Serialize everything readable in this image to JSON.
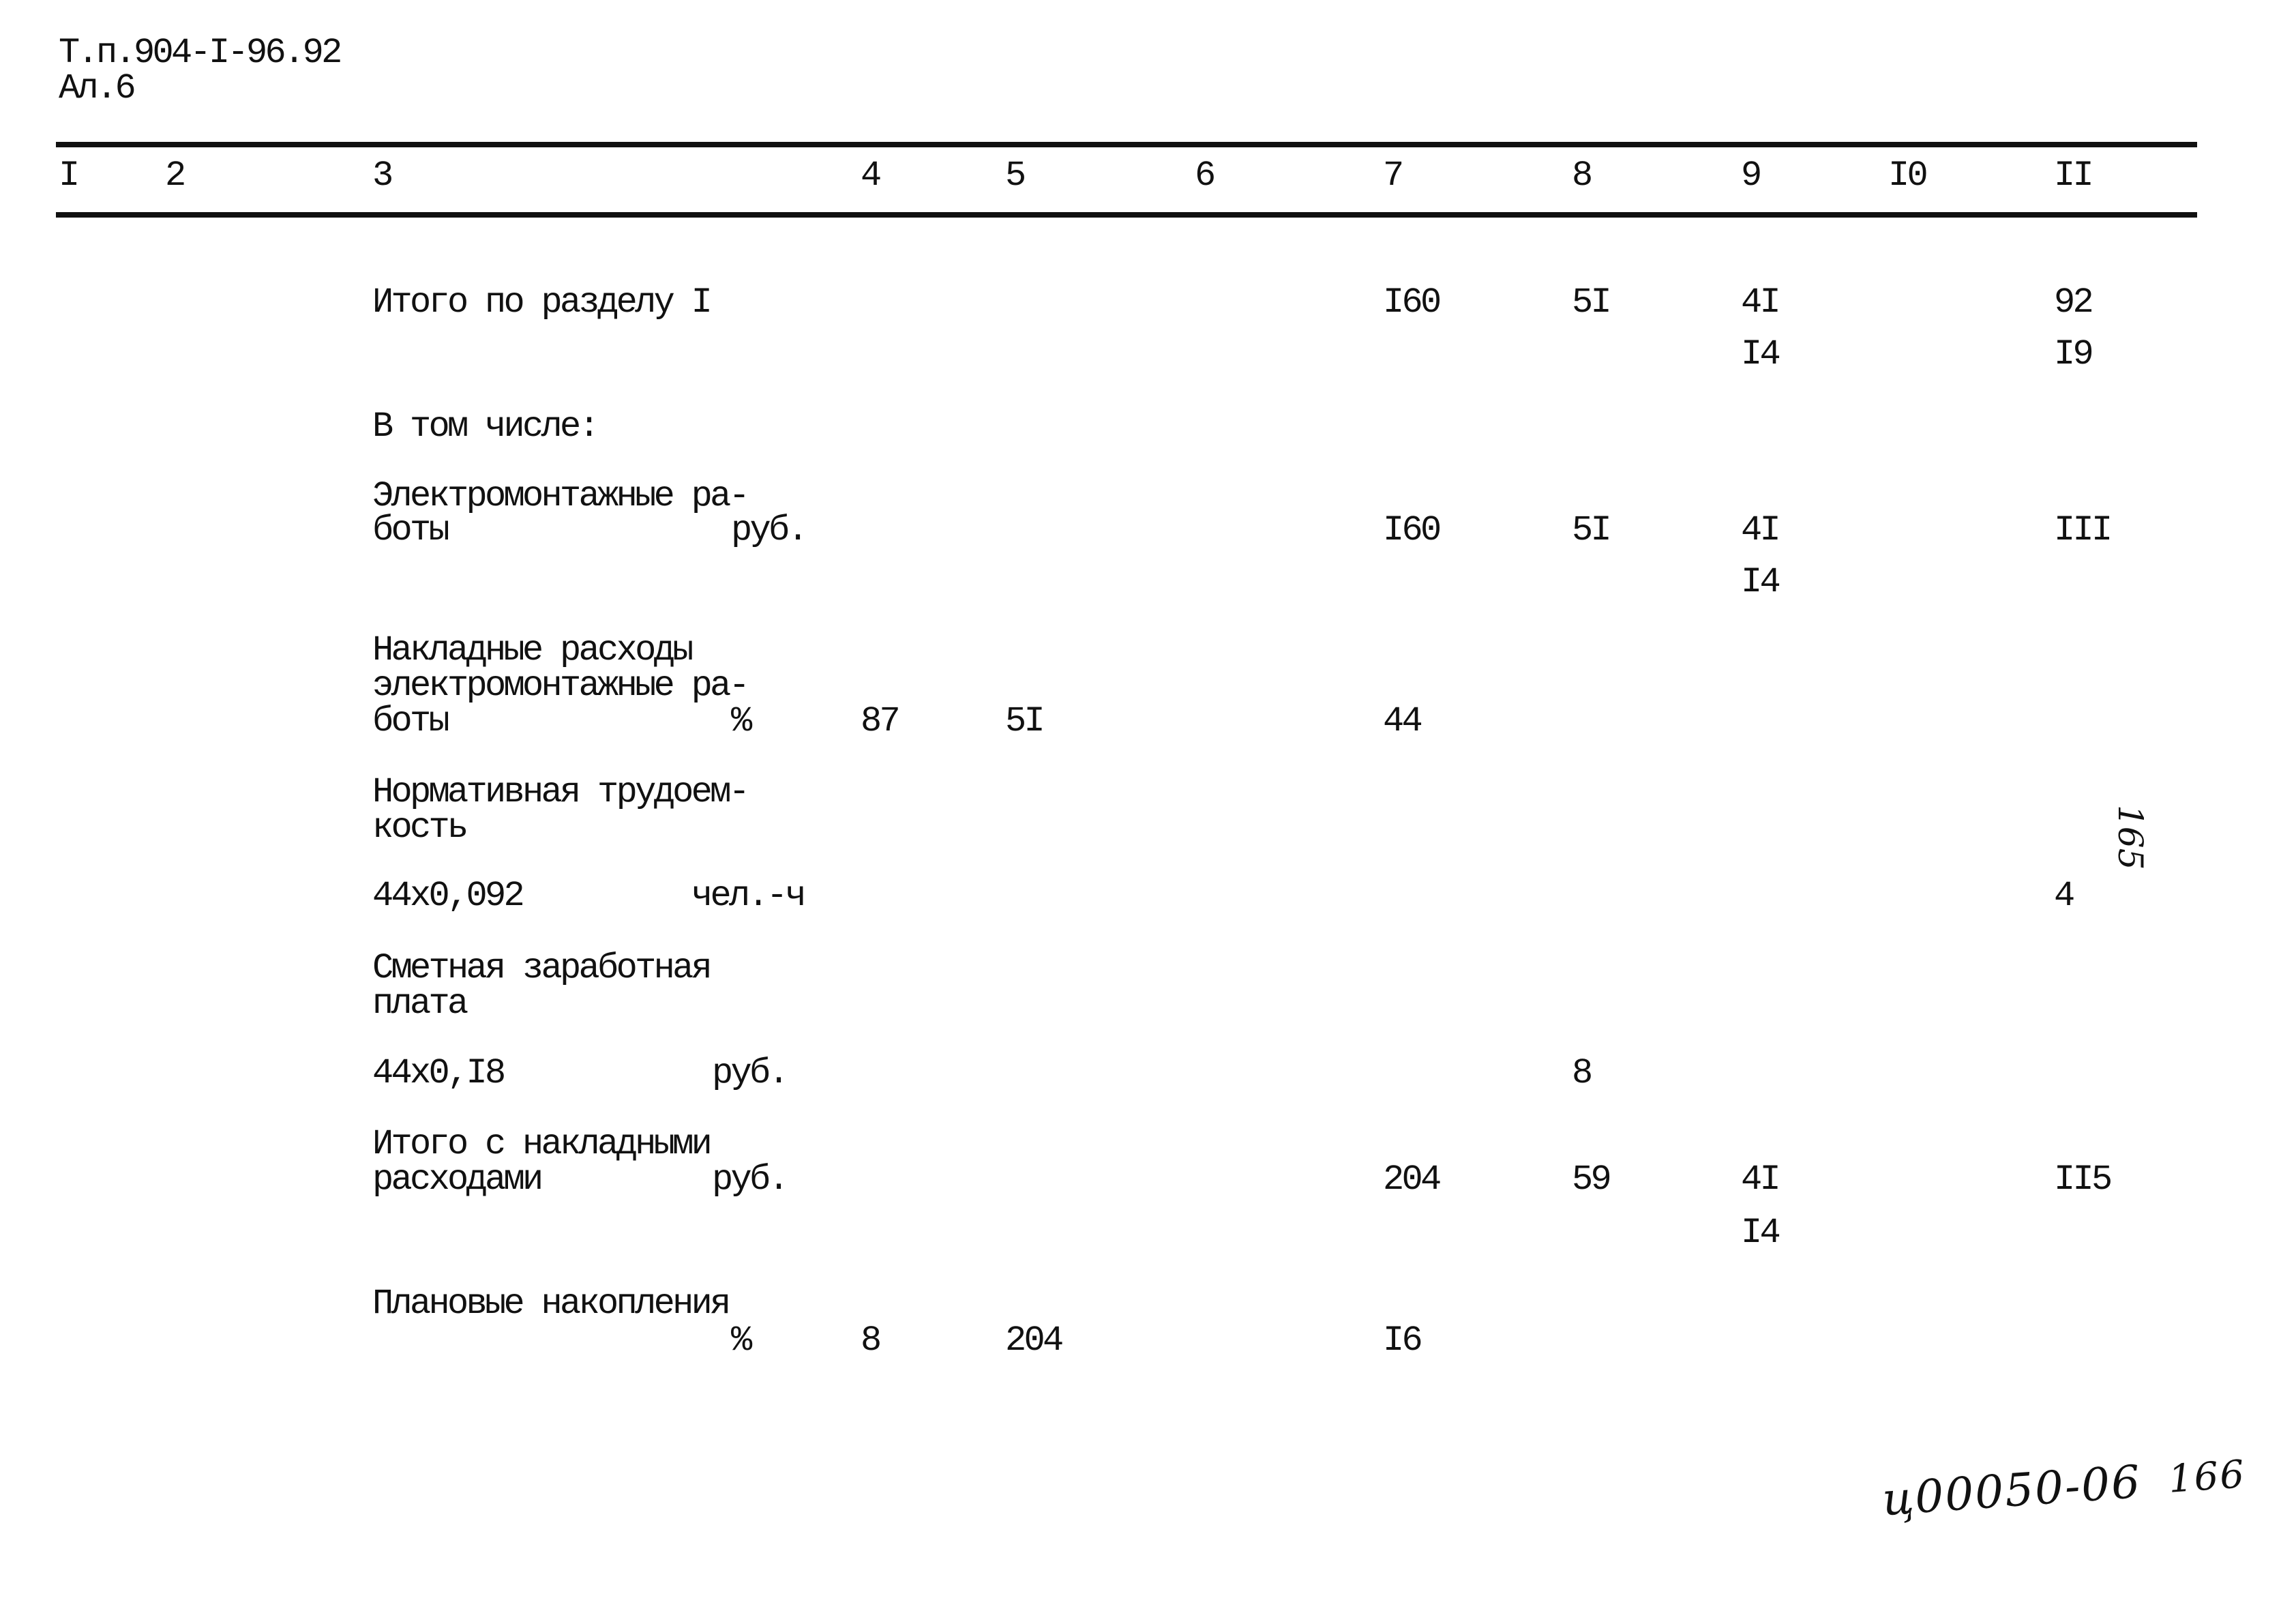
{
  "header": {
    "doc_code": "Т.п.904-I-96.92",
    "album": "Ал.6"
  },
  "columns": [
    "I",
    "2",
    "3",
    "4",
    "5",
    "6",
    "7",
    "8",
    "9",
    "I0",
    "II"
  ],
  "rows": [
    {
      "label": [
        "Итого по разделу I"
      ],
      "c7": "I60",
      "c8": "5I",
      "c9": [
        "4I",
        "I4"
      ],
      "c11": [
        "92",
        "I9"
      ]
    },
    {
      "label": [
        "В том числе:"
      ]
    },
    {
      "label": [
        "Электромонтажные ра-",
        "боты"
      ],
      "unit": "руб.",
      "c7": "I60",
      "c8": "5I",
      "c9": [
        "4I",
        "I4"
      ],
      "c11": [
        "III"
      ]
    },
    {
      "label": [
        "Накладные расходы",
        "электромонтажные ра-",
        "боты"
      ],
      "unit": "%",
      "c4": "87",
      "c5": "5I",
      "c7": "44"
    },
    {
      "label": [
        "Нормативная трудоем-",
        "кость"
      ]
    },
    {
      "label": [
        "44x0,092"
      ],
      "unit": "чел.-ч",
      "c11": [
        "4"
      ]
    },
    {
      "label": [
        "Сметная заработная",
        "плата"
      ]
    },
    {
      "label": [
        "44x0,I8"
      ],
      "unit": "руб.",
      "c8": "8"
    },
    {
      "label": [
        "Итого с накладными",
        "расходами"
      ],
      "unit": "руб.",
      "c7": "204",
      "c8": "59",
      "c9": [
        "4I",
        "I4"
      ],
      "c11": [
        "II5"
      ]
    },
    {
      "label": [
        "Плановые накопления"
      ],
      "unit": "%",
      "c4": "8",
      "c5": "204",
      "c7": "I6"
    }
  ],
  "page_number_stamp": "165",
  "handwritten": {
    "code": "ц00050-06",
    "page": "166"
  }
}
